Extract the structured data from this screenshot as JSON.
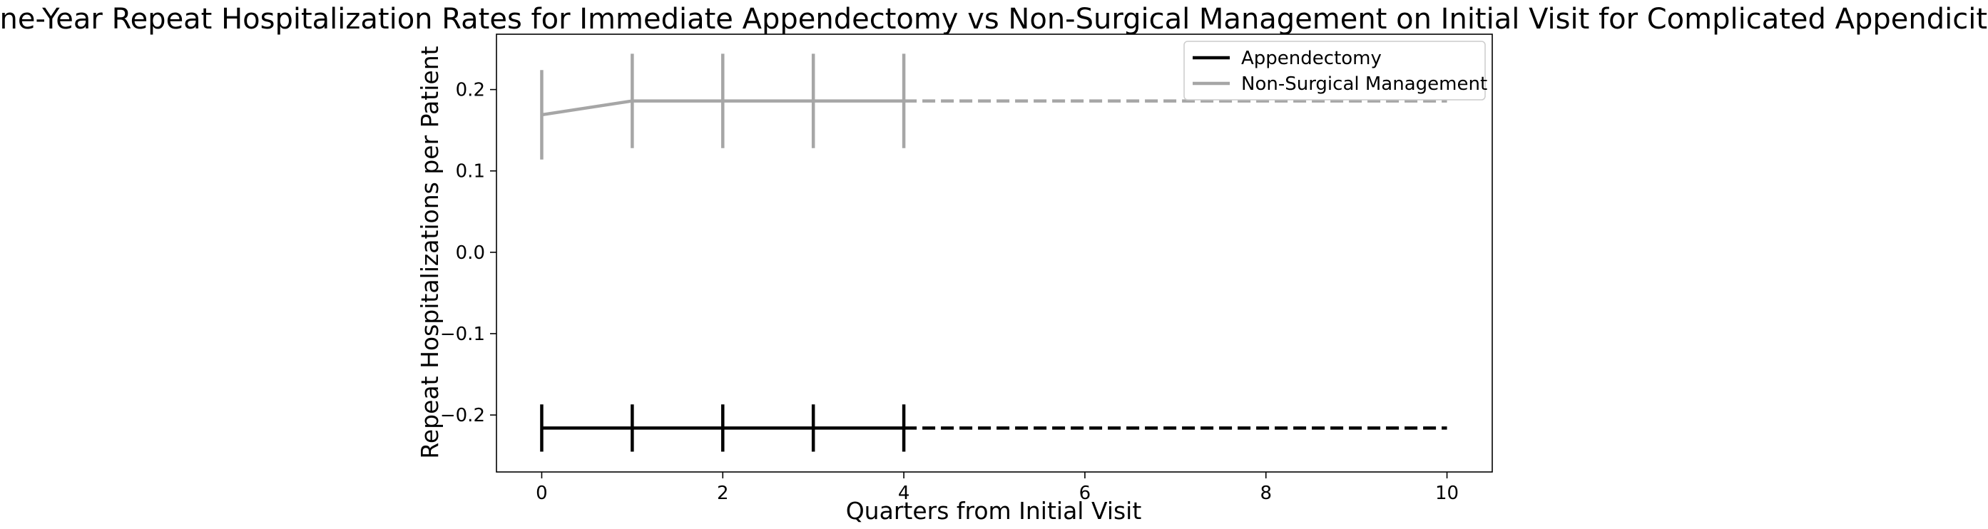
{
  "chart_data": {
    "type": "line",
    "title": "One-Year Repeat Hospitalization Rates for Immediate Appendectomy vs Non-Surgical Management on Initial Visit for Complicated Appendicitis",
    "xlabel": "Quarters from Initial Visit",
    "ylabel": "Repeat Hospitalizations per Patient",
    "xlim": [
      -0.5,
      10.5
    ],
    "ylim": [
      -0.27,
      0.268
    ],
    "xticks": [
      0,
      2,
      4,
      6,
      8,
      10
    ],
    "xtick_labels": [
      "0",
      "2",
      "4",
      "6",
      "8",
      "10"
    ],
    "yticks": [
      -0.2,
      -0.1,
      0.0,
      0.1,
      0.2
    ],
    "ytick_labels": [
      "−0.2",
      "−0.1",
      "0.0",
      "0.1",
      "0.2"
    ],
    "grid": false,
    "legend_position": "top-right",
    "series": [
      {
        "name": "Appendectomy",
        "color": "#000000",
        "x": [
          0,
          1,
          2,
          3,
          4
        ],
        "y": [
          -0.216,
          -0.216,
          -0.216,
          -0.216,
          -0.216
        ],
        "yerr": [
          0.029,
          0.029,
          0.029,
          0.029,
          0.029
        ],
        "extrapolation": {
          "x": [
            4,
            10
          ],
          "y": [
            -0.216,
            -0.216
          ],
          "style": "dashed"
        }
      },
      {
        "name": "Non-Surgical Management",
        "color": "#a6a6a6",
        "x": [
          0,
          1,
          2,
          3,
          4
        ],
        "y": [
          0.169,
          0.186,
          0.186,
          0.186,
          0.186
        ],
        "yerr": [
          0.055,
          0.058,
          0.058,
          0.058,
          0.058
        ],
        "extrapolation": {
          "x": [
            4,
            10
          ],
          "y": [
            0.186,
            0.186
          ],
          "style": "dashed"
        }
      }
    ]
  }
}
